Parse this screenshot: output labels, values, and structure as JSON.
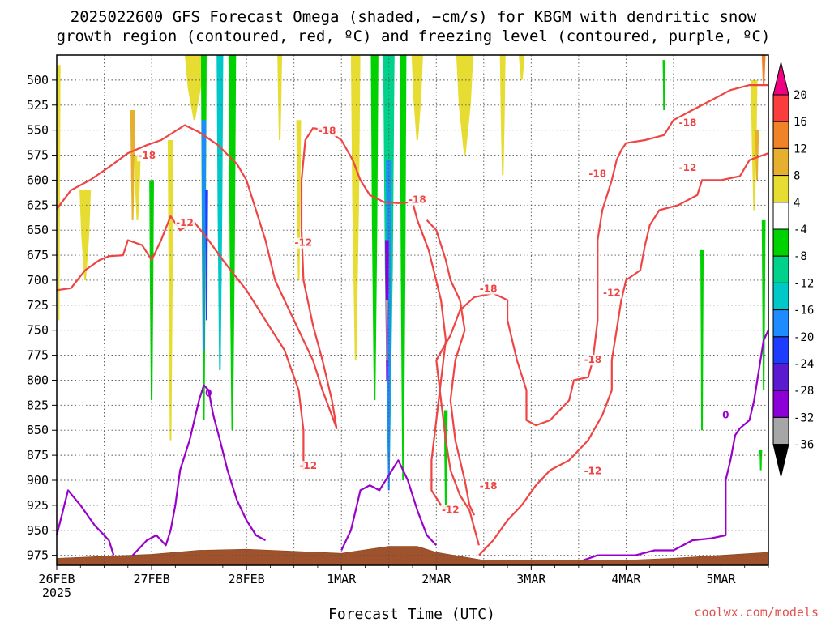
{
  "chart_data": {
    "type": "heatmap",
    "title_lines": [
      "2025022600 GFS Forecast Omega (shaded, −cm/s) for KBGM with dendritic snow",
      "growth region (contoured, red, ºC) and freezing level (contoured, purple, ºC)"
    ],
    "xlabel": "Forecast Time (UTC)",
    "credit": "coolwx.com/models",
    "x_ticks": [
      {
        "label": "26FEB",
        "day": 0,
        "sub": "2025"
      },
      {
        "label": "27FEB",
        "day": 1
      },
      {
        "label": "28FEB",
        "day": 2
      },
      {
        "label": "1MAR",
        "day": 3
      },
      {
        "label": "2MAR",
        "day": 4
      },
      {
        "label": "3MAR",
        "day": 5
      },
      {
        "label": "4MAR",
        "day": 6
      },
      {
        "label": "5MAR",
        "day": 7
      }
    ],
    "x_range_days": [
      0,
      7.5
    ],
    "y_range_hpa": [
      475,
      985
    ],
    "y_ticks": [
      500,
      525,
      550,
      575,
      600,
      625,
      650,
      675,
      700,
      725,
      750,
      775,
      800,
      825,
      850,
      875,
      900,
      925,
      950,
      975
    ],
    "grid": true,
    "colorbar": {
      "levels": [
        -36,
        -32,
        -28,
        -24,
        -20,
        -16,
        -12,
        -8,
        -4,
        4,
        8,
        12,
        16,
        20
      ],
      "colors": [
        "#a6a6a6",
        "#8c00d7",
        "#5a1ad0",
        "#1e3cff",
        "#1e8cff",
        "#00c8c8",
        "#00d28c",
        "#00d200",
        "#ffffff",
        "#e6dc32",
        "#e6af2d",
        "#f08228",
        "#fa3c3c",
        "#f00082"
      ],
      "under_color": "#000000",
      "over_color": "#f00082"
    },
    "dendritic_labels": [
      {
        "text": "-18",
        "day": 0.95,
        "hpa": 578
      },
      {
        "text": "-12",
        "day": 1.35,
        "hpa": 645
      },
      {
        "text": "-18",
        "day": 2.85,
        "hpa": 553
      },
      {
        "text": "-12",
        "day": 2.6,
        "hpa": 665
      },
      {
        "text": "-18",
        "day": 3.8,
        "hpa": 622
      },
      {
        "text": "-12",
        "day": 2.65,
        "hpa": 888
      },
      {
        "text": "-18",
        "day": 4.55,
        "hpa": 711
      },
      {
        "text": "-12",
        "day": 4.15,
        "hpa": 932
      },
      {
        "text": "-18",
        "day": 4.55,
        "hpa": 908
      },
      {
        "text": "-18",
        "day": 5.7,
        "hpa": 596
      },
      {
        "text": "-12",
        "day": 5.85,
        "hpa": 715
      },
      {
        "text": "-18",
        "day": 5.65,
        "hpa": 782
      },
      {
        "text": "-12",
        "day": 5.65,
        "hpa": 893
      },
      {
        "text": "-18",
        "day": 6.65,
        "hpa": 545
      },
      {
        "text": "-12",
        "day": 6.65,
        "hpa": 590
      }
    ],
    "freezing_label": {
      "text": "0",
      "day": 1.6,
      "hpa": 813
    },
    "freezing_label_2": {
      "text": "0",
      "day": 7.05,
      "hpa": 835
    },
    "contour_minus18_a": [
      [
        0,
        629
      ],
      [
        0.15,
        610
      ],
      [
        0.35,
        600
      ],
      [
        0.55,
        587
      ],
      [
        0.75,
        573
      ],
      [
        0.95,
        565
      ],
      [
        1.1,
        560
      ],
      [
        1.35,
        545
      ],
      [
        1.5,
        552
      ],
      [
        1.7,
        565
      ],
      [
        1.9,
        584
      ],
      [
        2.0,
        600
      ],
      [
        2.1,
        630
      ],
      [
        2.2,
        660
      ],
      [
        2.3,
        700
      ],
      [
        2.45,
        730
      ],
      [
        2.6,
        760
      ],
      [
        2.7,
        780
      ],
      [
        2.8,
        810
      ],
      [
        2.95,
        848
      ],
      [
        2.9,
        820
      ],
      [
        2.8,
        780
      ],
      [
        2.7,
        745
      ],
      [
        2.6,
        700
      ],
      [
        2.58,
        650
      ],
      [
        2.58,
        600
      ],
      [
        2.62,
        560
      ],
      [
        2.7,
        548
      ],
      [
        2.85,
        550
      ],
      [
        3.0,
        560
      ],
      [
        3.12,
        580
      ],
      [
        3.2,
        600
      ],
      [
        3.3,
        615
      ],
      [
        3.45,
        622
      ],
      [
        3.6,
        623
      ],
      [
        3.75,
        622
      ],
      [
        3.8,
        640
      ],
      [
        3.92,
        670
      ],
      [
        4.05,
        720
      ],
      [
        4.1,
        760
      ],
      [
        4.05,
        800
      ],
      [
        4.0,
        840
      ],
      [
        3.95,
        880
      ],
      [
        3.95,
        910
      ],
      [
        4.05,
        925
      ],
      [
        4.12,
        930
      ]
    ],
    "contour_minus12_a": [
      [
        0,
        710
      ],
      [
        0.15,
        708
      ],
      [
        0.3,
        690
      ],
      [
        0.45,
        680
      ],
      [
        0.55,
        676
      ],
      [
        0.7,
        675
      ],
      [
        0.75,
        660
      ],
      [
        0.9,
        665
      ],
      [
        1.0,
        680
      ],
      [
        1.1,
        660
      ],
      [
        1.2,
        636
      ],
      [
        1.3,
        650
      ],
      [
        1.45,
        642
      ],
      [
        1.6,
        660
      ],
      [
        1.75,
        680
      ],
      [
        2.0,
        710
      ],
      [
        2.2,
        740
      ],
      [
        2.4,
        770
      ],
      [
        2.55,
        810
      ],
      [
        2.6,
        850
      ],
      [
        2.6,
        890
      ]
    ],
    "contour_minus12_b": [
      [
        3.9,
        640
      ],
      [
        4.0,
        650
      ],
      [
        4.1,
        680
      ],
      [
        4.15,
        700
      ],
      [
        4.25,
        720
      ],
      [
        4.3,
        750
      ],
      [
        4.2,
        780
      ],
      [
        4.15,
        820
      ],
      [
        4.2,
        860
      ],
      [
        4.3,
        900
      ],
      [
        4.35,
        925
      ],
      [
        4.4,
        935
      ]
    ],
    "contour_minus18_b": [
      [
        4.45,
        965
      ],
      [
        4.35,
        930
      ],
      [
        4.25,
        915
      ],
      [
        4.15,
        890
      ],
      [
        4.1,
        860
      ],
      [
        4.05,
        820
      ],
      [
        4.0,
        780
      ],
      [
        4.15,
        755
      ],
      [
        4.25,
        730
      ],
      [
        4.4,
        717
      ],
      [
        4.6,
        713
      ],
      [
        4.75,
        720
      ],
      [
        4.75,
        740
      ],
      [
        4.85,
        780
      ],
      [
        4.95,
        810
      ],
      [
        4.95,
        840
      ],
      [
        5.05,
        845
      ],
      [
        5.2,
        840
      ],
      [
        5.3,
        830
      ],
      [
        5.4,
        820
      ],
      [
        5.45,
        800
      ],
      [
        5.6,
        797
      ],
      [
        5.65,
        780
      ],
      [
        5.7,
        740
      ],
      [
        5.7,
        700
      ],
      [
        5.7,
        660
      ],
      [
        5.75,
        630
      ],
      [
        5.85,
        600
      ],
      [
        5.9,
        580
      ],
      [
        5.95,
        570
      ],
      [
        6.0,
        563
      ],
      [
        6.2,
        560
      ],
      [
        6.4,
        555
      ],
      [
        6.5,
        540
      ],
      [
        6.7,
        530
      ],
      [
        6.9,
        520
      ],
      [
        7.1,
        510
      ],
      [
        7.3,
        505
      ],
      [
        7.5,
        505
      ]
    ],
    "contour_minus12_c": [
      [
        4.45,
        975
      ],
      [
        4.6,
        960
      ],
      [
        4.75,
        940
      ],
      [
        4.9,
        925
      ],
      [
        5.05,
        905
      ],
      [
        5.2,
        890
      ],
      [
        5.4,
        880
      ],
      [
        5.6,
        860
      ],
      [
        5.75,
        835
      ],
      [
        5.85,
        810
      ],
      [
        5.85,
        780
      ],
      [
        5.9,
        750
      ],
      [
        5.95,
        720
      ],
      [
        6.0,
        700
      ],
      [
        6.15,
        690
      ],
      [
        6.2,
        665
      ],
      [
        6.25,
        645
      ],
      [
        6.35,
        630
      ],
      [
        6.55,
        625
      ],
      [
        6.75,
        615
      ],
      [
        6.8,
        600
      ],
      [
        7.0,
        600
      ],
      [
        7.2,
        596
      ],
      [
        7.3,
        580
      ],
      [
        7.5,
        573
      ]
    ],
    "freezing_path": [
      [
        0,
        955
      ],
      [
        0.12,
        910
      ],
      [
        0.25,
        925
      ],
      [
        0.4,
        945
      ],
      [
        0.55,
        960
      ],
      [
        0.6,
        975
      ]
    ],
    "freezing_path_2": [
      [
        0.8,
        975
      ],
      [
        0.95,
        960
      ],
      [
        1.05,
        955
      ],
      [
        1.15,
        965
      ],
      [
        1.2,
        950
      ],
      [
        1.25,
        925
      ],
      [
        1.3,
        890
      ],
      [
        1.4,
        860
      ],
      [
        1.5,
        820
      ],
      [
        1.55,
        805
      ],
      [
        1.6,
        810
      ],
      [
        1.65,
        835
      ],
      [
        1.72,
        860
      ],
      [
        1.8,
        890
      ],
      [
        1.9,
        920
      ],
      [
        2.0,
        940
      ],
      [
        2.1,
        955
      ],
      [
        2.2,
        960
      ]
    ],
    "freezing_path_3": [
      [
        3.0,
        970
      ],
      [
        3.1,
        950
      ],
      [
        3.15,
        930
      ],
      [
        3.2,
        910
      ],
      [
        3.3,
        905
      ],
      [
        3.4,
        910
      ],
      [
        3.5,
        895
      ],
      [
        3.6,
        880
      ],
      [
        3.7,
        900
      ],
      [
        3.8,
        930
      ],
      [
        3.9,
        955
      ],
      [
        4.0,
        965
      ]
    ],
    "freezing_path_4": [
      [
        5.55,
        980
      ],
      [
        5.7,
        975
      ],
      [
        5.9,
        975
      ],
      [
        6.1,
        975
      ],
      [
        6.3,
        970
      ],
      [
        6.5,
        970
      ],
      [
        6.7,
        960
      ],
      [
        6.9,
        958
      ],
      [
        7.05,
        955
      ],
      [
        7.05,
        900
      ],
      [
        7.1,
        880
      ],
      [
        7.15,
        855
      ],
      [
        7.2,
        848
      ],
      [
        7.3,
        840
      ],
      [
        7.35,
        820
      ],
      [
        7.4,
        790
      ],
      [
        7.45,
        760
      ],
      [
        7.5,
        750
      ]
    ],
    "shaded_blobs": [
      {
        "day": 0.02,
        "p1": 485,
        "p2": 740,
        "w": 0.04,
        "color": "#e6dc32"
      },
      {
        "day": 0.85,
        "p1": 575,
        "p2": 640,
        "w": 0.07,
        "color": "#e6dc32"
      },
      {
        "day": 0.3,
        "p1": 610,
        "p2": 700,
        "w": 0.12,
        "color": "#e6dc32"
      },
      {
        "day": 1.45,
        "p1": 475,
        "p2": 540,
        "w": 0.2,
        "color": "#e6dc32"
      },
      {
        "day": 1.55,
        "p1": 475,
        "p2": 840,
        "w": 0.06,
        "color": "#00d200"
      },
      {
        "day": 1.72,
        "p1": 475,
        "p2": 790,
        "w": 0.07,
        "color": "#00c8c8"
      },
      {
        "day": 1.85,
        "p1": 475,
        "p2": 850,
        "w": 0.08,
        "color": "#00d200"
      },
      {
        "day": 1.55,
        "p1": 540,
        "p2": 770,
        "w": 0.05,
        "color": "#1e8cff"
      },
      {
        "day": 1.58,
        "p1": 610,
        "p2": 740,
        "w": 0.03,
        "color": "#1e3cff"
      },
      {
        "day": 1.2,
        "p1": 560,
        "p2": 860,
        "w": 0.06,
        "color": "#e6dc32"
      },
      {
        "day": 1.0,
        "p1": 600,
        "p2": 820,
        "w": 0.05,
        "color": "#00d200"
      },
      {
        "day": 0.8,
        "p1": 530,
        "p2": 640,
        "w": 0.05,
        "color": "#e6af2d"
      },
      {
        "day": 2.35,
        "p1": 475,
        "p2": 560,
        "w": 0.05,
        "color": "#e6dc32"
      },
      {
        "day": 2.55,
        "p1": 540,
        "p2": 700,
        "w": 0.05,
        "color": "#e6dc32"
      },
      {
        "day": 3.15,
        "p1": 475,
        "p2": 780,
        "w": 0.1,
        "color": "#e6dc32"
      },
      {
        "day": 3.35,
        "p1": 475,
        "p2": 820,
        "w": 0.08,
        "color": "#00d200"
      },
      {
        "day": 3.5,
        "p1": 475,
        "p2": 900,
        "w": 0.12,
        "color": "#00d28c"
      },
      {
        "day": 3.5,
        "p1": 580,
        "p2": 910,
        "w": 0.06,
        "color": "#1e8cff"
      },
      {
        "day": 3.48,
        "p1": 660,
        "p2": 800,
        "w": 0.04,
        "color": "#8c00d7"
      },
      {
        "day": 3.48,
        "p1": 720,
        "p2": 780,
        "w": 0.025,
        "color": "#a6a6a6"
      },
      {
        "day": 3.65,
        "p1": 475,
        "p2": 900,
        "w": 0.07,
        "color": "#00d200"
      },
      {
        "day": 3.8,
        "p1": 475,
        "p2": 560,
        "w": 0.12,
        "color": "#e6dc32"
      },
      {
        "day": 4.3,
        "p1": 475,
        "p2": 575,
        "w": 0.18,
        "color": "#e6dc32"
      },
      {
        "day": 4.7,
        "p1": 475,
        "p2": 595,
        "w": 0.06,
        "color": "#e6dc32"
      },
      {
        "day": 4.9,
        "p1": 475,
        "p2": 500,
        "w": 0.06,
        "color": "#e6dc32"
      },
      {
        "day": 4.1,
        "p1": 830,
        "p2": 930,
        "w": 0.04,
        "color": "#00d200"
      },
      {
        "day": 6.4,
        "p1": 480,
        "p2": 530,
        "w": 0.03,
        "color": "#00d200"
      },
      {
        "day": 6.8,
        "p1": 670,
        "p2": 850,
        "w": 0.035,
        "color": "#00d200"
      },
      {
        "day": 7.35,
        "p1": 500,
        "p2": 630,
        "w": 0.07,
        "color": "#e6dc32"
      },
      {
        "day": 7.38,
        "p1": 550,
        "p2": 600,
        "w": 0.04,
        "color": "#e6af2d"
      },
      {
        "day": 7.45,
        "p1": 475,
        "p2": 505,
        "w": 0.04,
        "color": "#f08228"
      },
      {
        "day": 7.45,
        "p1": 640,
        "p2": 810,
        "w": 0.04,
        "color": "#00d200"
      },
      {
        "day": 7.42,
        "p1": 870,
        "p2": 890,
        "w": 0.03,
        "color": "#00d200"
      }
    ]
  }
}
